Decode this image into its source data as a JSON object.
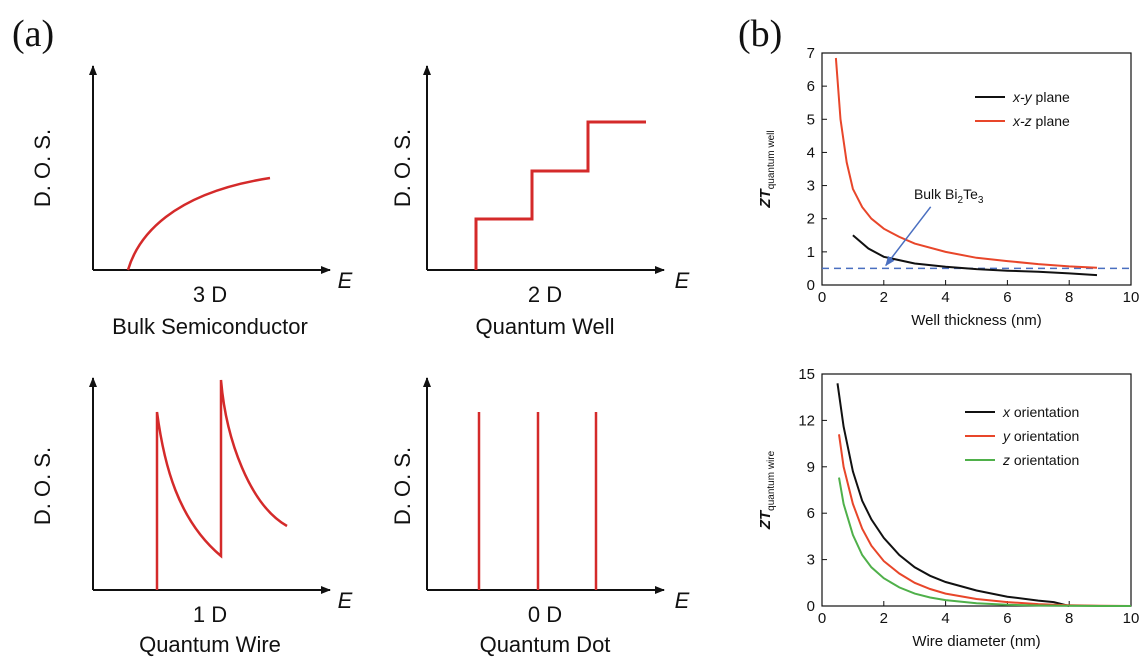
{
  "panel_a": {
    "letter": "(a)",
    "subplots": [
      {
        "ylabel": "D. O. S.",
        "xlabel": "E",
        "dim": "3 D",
        "name": "Bulk Semiconductor"
      },
      {
        "ylabel": "D. O. S.",
        "xlabel": "E",
        "dim": "2 D",
        "name": "Quantum Well"
      },
      {
        "ylabel": "D. O. S.",
        "xlabel": "E",
        "dim": "1 D",
        "name": "Quantum Wire"
      },
      {
        "ylabel": "D. O. S.",
        "xlabel": "E",
        "dim": "0 D",
        "name": "Quantum Dot"
      }
    ]
  },
  "panel_b": {
    "letter": "(b)"
  },
  "colors": {
    "dos_curve": "#d42a2a",
    "black": "#111111",
    "red": "#e8462a",
    "green": "#4fb04a",
    "bulk_line": "#4a6fc0"
  },
  "chart_data": [
    {
      "type": "line",
      "xlabel": "Well thickness (nm)",
      "ylabel_main": "ZT",
      "ylabel_sub": "quantum well",
      "xlim": [
        0,
        10
      ],
      "ylim": [
        0,
        7
      ],
      "xticks": [
        "0",
        "2",
        "4",
        "6",
        "8",
        "10"
      ],
      "yticks": [
        "0",
        "1",
        "2",
        "3",
        "4",
        "5",
        "6",
        "7"
      ],
      "legend_position": "top-right",
      "series": [
        {
          "name": "x-y plane",
          "color": "#111111",
          "x": [
            1.0,
            1.5,
            2.0,
            3.0,
            4.0,
            5.0,
            6.0,
            7.0,
            8.0,
            8.9
          ],
          "y": [
            1.5,
            1.1,
            0.85,
            0.65,
            0.55,
            0.48,
            0.43,
            0.4,
            0.35,
            0.3
          ]
        },
        {
          "name": "x-z plane",
          "color": "#e8462a",
          "x": [
            0.45,
            0.6,
            0.8,
            1.0,
            1.3,
            1.6,
            2.0,
            2.5,
            3.0,
            4.0,
            5.0,
            6.0,
            7.0,
            8.0,
            8.9
          ],
          "y": [
            6.85,
            5.0,
            3.7,
            2.9,
            2.35,
            2.0,
            1.7,
            1.45,
            1.25,
            1.0,
            0.82,
            0.72,
            0.63,
            0.56,
            0.52
          ]
        }
      ],
      "reference_line": {
        "y": 0.5,
        "color": "#4a6fc0"
      },
      "annotation": {
        "text_main": "Bulk Bi",
        "sub1": "2",
        "text_mid": "Te",
        "sub2": "3",
        "arrow_to": [
          2.0,
          0.5
        ],
        "text_at": [
          4.1,
          2.6
        ]
      }
    },
    {
      "type": "line",
      "xlabel": "Wire diameter (nm)",
      "ylabel_main": "ZT",
      "ylabel_sub": "quantum wire",
      "xlim": [
        0,
        10
      ],
      "ylim": [
        0,
        15
      ],
      "xticks": [
        "0",
        "2",
        "4",
        "6",
        "8",
        "10"
      ],
      "yticks": [
        "0",
        "3",
        "6",
        "9",
        "12",
        "15"
      ],
      "legend_position": "top-right",
      "series": [
        {
          "name": "x orientation",
          "color": "#111111",
          "x": [
            0.5,
            0.7,
            1.0,
            1.3,
            1.6,
            2.0,
            2.5,
            3.0,
            3.5,
            4.0,
            5.0,
            6.0,
            7.0,
            7.5,
            8.0
          ],
          "y": [
            14.4,
            11.6,
            8.7,
            6.8,
            5.6,
            4.4,
            3.3,
            2.5,
            1.95,
            1.55,
            1.0,
            0.6,
            0.35,
            0.25,
            0.0
          ]
        },
        {
          "name": "y orientation",
          "color": "#e8462a",
          "x": [
            0.55,
            0.7,
            1.0,
            1.3,
            1.6,
            2.0,
            2.5,
            3.0,
            3.5,
            4.0,
            5.0,
            6.0,
            7.0,
            8.0,
            9.0,
            10.0
          ],
          "y": [
            11.1,
            9.0,
            6.6,
            5.0,
            3.9,
            2.9,
            2.1,
            1.5,
            1.1,
            0.8,
            0.45,
            0.25,
            0.12,
            0.05,
            0.02,
            0.0
          ]
        },
        {
          "name": "z orientation",
          "color": "#4fb04a",
          "x": [
            0.55,
            0.7,
            1.0,
            1.3,
            1.6,
            2.0,
            2.5,
            3.0,
            3.5,
            4.0,
            5.0,
            6.0,
            7.0,
            8.0,
            9.0,
            10.0
          ],
          "y": [
            8.3,
            6.6,
            4.6,
            3.3,
            2.5,
            1.8,
            1.2,
            0.8,
            0.55,
            0.38,
            0.18,
            0.08,
            0.03,
            0.01,
            0.0,
            0.0
          ]
        }
      ]
    }
  ]
}
